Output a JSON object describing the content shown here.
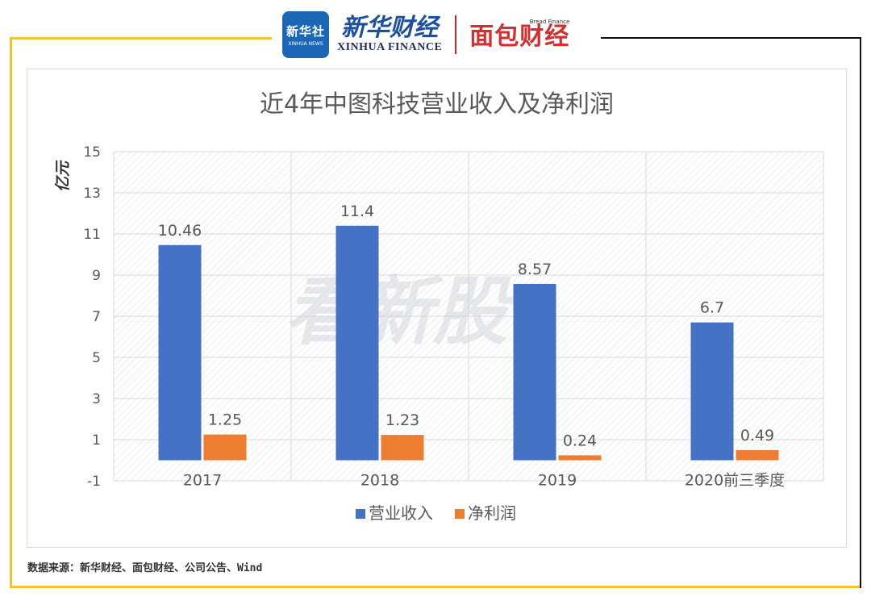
{
  "header": {
    "logo_square_top": "新华社",
    "logo_square_bottom": "XINHUA NEWS",
    "xinhua_cn": "新华财经",
    "xinhua_en": "XINHUA FINANCE",
    "bread_en": "Bread Finance",
    "bread_cn": "面包财经"
  },
  "watermark": "看新股",
  "source": "数据来源：新华财经、面包财经、公司公告、Wind",
  "colors": {
    "revenue": "#4472c4",
    "profit": "#ed7d31",
    "accent_yellow": "#f2c230"
  },
  "chart_data": {
    "type": "bar",
    "title": "近4年中图科技营业收入及净利润",
    "ylabel": "亿元",
    "xlabel": "",
    "categories": [
      "2017",
      "2018",
      "2019",
      "2020前三季度"
    ],
    "ylim": [
      -1,
      15
    ],
    "yticks": [
      -1,
      1,
      3,
      5,
      7,
      9,
      11,
      13,
      15
    ],
    "grid": true,
    "legend_position": "bottom",
    "series": [
      {
        "name": "营业收入",
        "values": [
          10.46,
          11.4,
          8.57,
          6.7
        ],
        "labels": [
          "10.46",
          "11.4",
          "8.57",
          "6.7"
        ]
      },
      {
        "name": "净利润",
        "values": [
          1.25,
          1.23,
          0.24,
          0.49
        ],
        "labels": [
          "1.25",
          "1.23",
          "0.24",
          "0.49"
        ]
      }
    ]
  }
}
